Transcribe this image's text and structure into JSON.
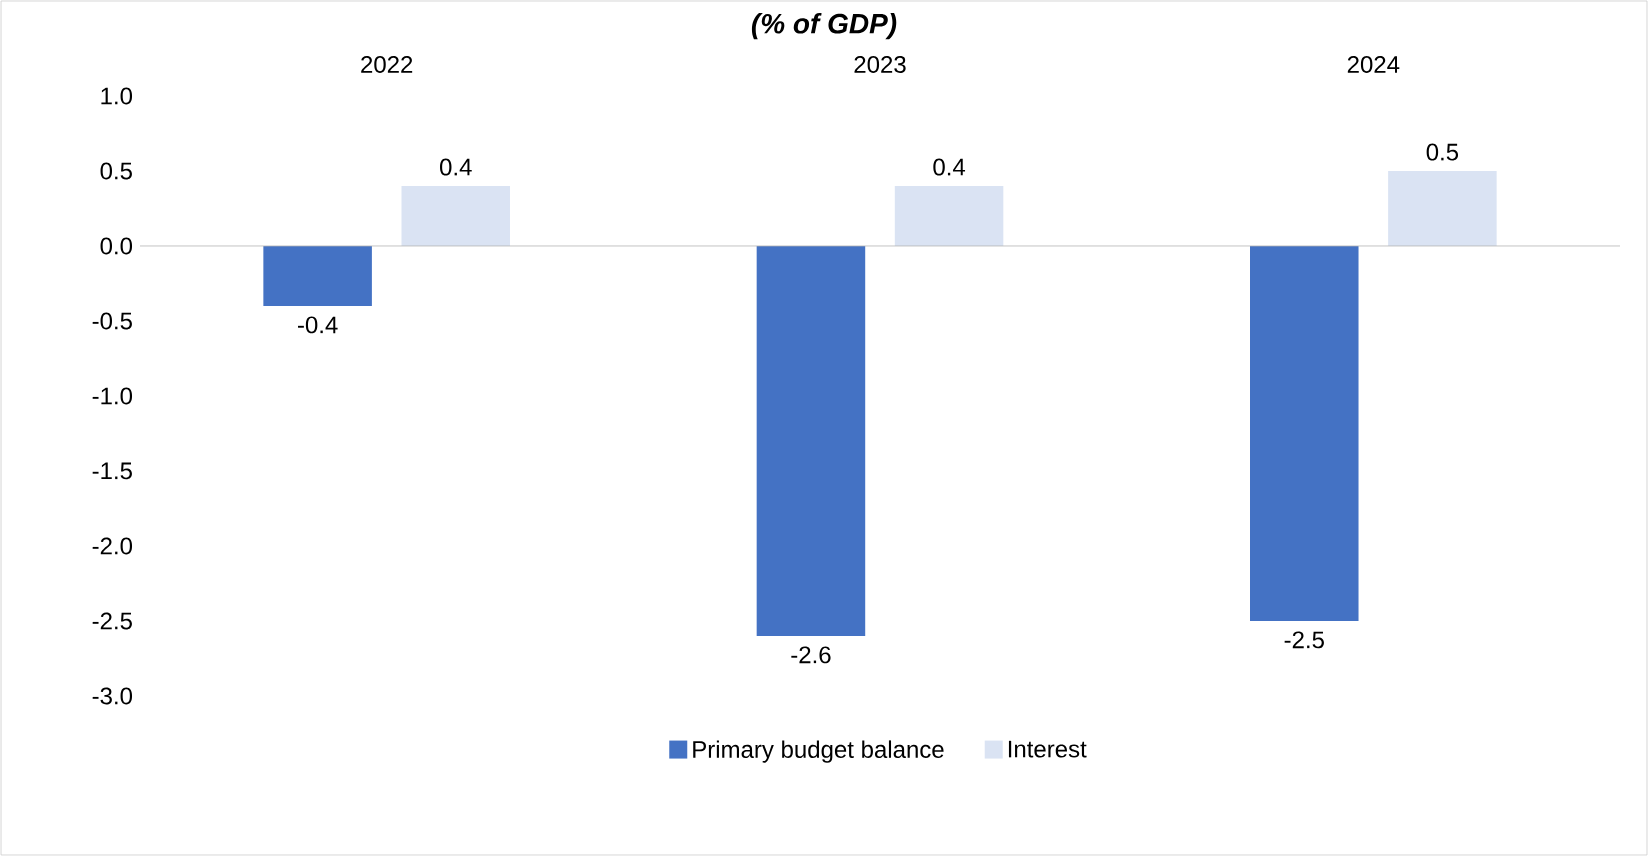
{
  "chart_data": {
    "type": "bar",
    "title": "(% of GDP)",
    "categories": [
      "2022",
      "2023",
      "2024"
    ],
    "series": [
      {
        "name": "Primary budget balance",
        "color": "#4472c4",
        "values": [
          -0.4,
          -2.6,
          -2.5
        ]
      },
      {
        "name": "Interest",
        "color": "#dae3f3",
        "values": [
          0.4,
          0.4,
          0.5
        ]
      }
    ],
    "ylim": [
      -3.0,
      1.0
    ],
    "yticks": [
      {
        "value": -3.0,
        "label": "-3.0"
      },
      {
        "value": -2.5,
        "label": "-2.5"
      },
      {
        "value": -2.0,
        "label": "-2.0"
      },
      {
        "value": -1.5,
        "label": "-1.5"
      },
      {
        "value": -1.0,
        "label": "-1.0"
      },
      {
        "value": -0.5,
        "label": "-0.5"
      },
      {
        "value": 0.0,
        "label": "0.0"
      },
      {
        "value": 0.5,
        "label": "0.5"
      },
      {
        "value": 1.0,
        "label": "1.0"
      }
    ],
    "data_labels": true,
    "legend": "bottom"
  }
}
